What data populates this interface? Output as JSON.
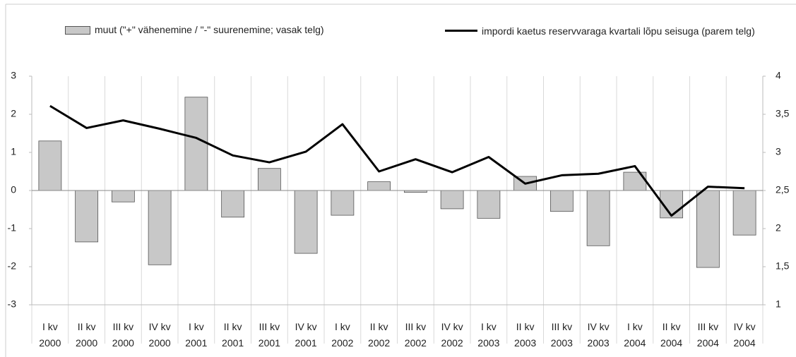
{
  "chart_data": {
    "type": "bar-line",
    "categories": [
      [
        "I kv",
        "2000"
      ],
      [
        "II kv",
        "2000"
      ],
      [
        "III kv",
        "2000"
      ],
      [
        "IV kv",
        "2000"
      ],
      [
        "I kv",
        "2001"
      ],
      [
        "II kv",
        "2001"
      ],
      [
        "III kv",
        "2001"
      ],
      [
        "IV kv",
        "2001"
      ],
      [
        "I kv",
        "2002"
      ],
      [
        "II kv",
        "2002"
      ],
      [
        "III kv",
        "2002"
      ],
      [
        "IV kv",
        "2002"
      ],
      [
        "I kv",
        "2003"
      ],
      [
        "II kv",
        "2003"
      ],
      [
        "III kv",
        "2003"
      ],
      [
        "IV kv",
        "2003"
      ],
      [
        "I kv",
        "2004"
      ],
      [
        "II kv",
        "2004"
      ],
      [
        "III kv",
        "2004"
      ],
      [
        "IV kv",
        "2004"
      ]
    ],
    "series": [
      {
        "name": "muut (\"+\" vähenemine / \"-\" suurenemine; vasak telg)",
        "type": "bar",
        "color": "#c8c8c8",
        "values": [
          1.3,
          -1.35,
          -0.3,
          -1.95,
          2.45,
          -0.7,
          0.58,
          -1.65,
          -0.65,
          0.23,
          -0.05,
          -0.48,
          -0.73,
          0.37,
          -0.55,
          -1.45,
          0.48,
          -0.72,
          -2.02,
          -1.17
        ]
      },
      {
        "name": "impordi kaetus reservvaraga kvartali lõpu seisuga (parem telg)",
        "type": "line",
        "axis": "y2",
        "color": "#000000",
        "values": [
          3.61,
          3.32,
          3.42,
          3.31,
          3.19,
          2.96,
          2.87,
          3.01,
          3.37,
          2.75,
          2.91,
          2.74,
          2.94,
          2.59,
          2.7,
          2.72,
          2.82,
          2.17,
          2.55,
          2.53
        ]
      }
    ],
    "ylim": [
      -3,
      3
    ],
    "yticks": [
      -3,
      -2,
      -1,
      0,
      1,
      2,
      3
    ],
    "y2lim": [
      1,
      4
    ],
    "y2ticks": [
      1,
      {
        "value": 1.5,
        "label": "1,5"
      },
      2,
      {
        "value": 2.5,
        "label": "2,5"
      },
      3,
      {
        "value": 3.5,
        "label": "3,5"
      },
      4
    ],
    "legend": "top"
  }
}
